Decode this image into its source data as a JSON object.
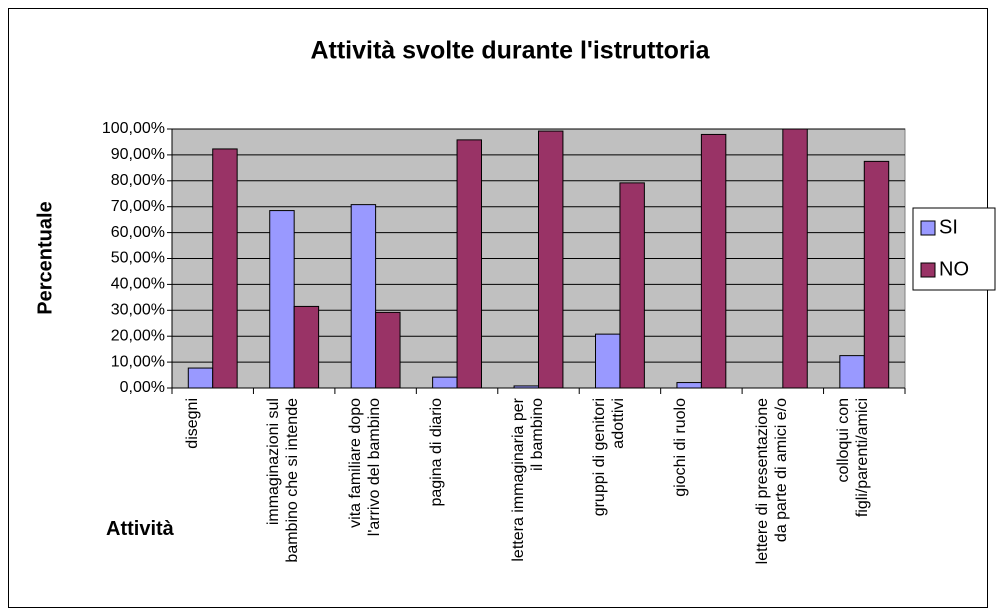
{
  "chart_data": {
    "type": "bar",
    "title": "Attività svolte durante l'istruttoria",
    "y_label": "Percentuale",
    "x_label": "Attività",
    "categories": [
      "disegni",
      "immaginazioni sul bambino che si intende",
      "vita familiare dopo l'arrivo del bambino",
      "pagina di diario",
      "lettera immaginaria per il bambino",
      "gruppi di genitori adottivi",
      "giochi di ruolo",
      "lettere di presentazione da parte di amici e/o",
      "colloqui con figli/parenti/amici"
    ],
    "series": [
      {
        "name": "SI",
        "color": "#9999ff",
        "values": [
          7.7,
          68.5,
          70.8,
          4.2,
          0.8,
          20.8,
          2.1,
          0,
          12.5
        ]
      },
      {
        "name": "NO",
        "color": "#993366",
        "values": [
          92.3,
          31.5,
          29.2,
          95.8,
          99.2,
          79.2,
          97.9,
          100,
          87.5
        ]
      }
    ],
    "ylim": [
      0,
      100
    ],
    "yticks": [
      {
        "value": 0,
        "label": "0,00%"
      },
      {
        "value": 10,
        "label": "10,00%"
      },
      {
        "value": 20,
        "label": "20,00%"
      },
      {
        "value": 30,
        "label": "30,00%"
      },
      {
        "value": 40,
        "label": "40,00%"
      },
      {
        "value": 50,
        "label": "50,00%"
      },
      {
        "value": 60,
        "label": "60,00%"
      },
      {
        "value": 70,
        "label": "70,00%"
      },
      {
        "value": 80,
        "label": "80,00%"
      },
      {
        "value": 90,
        "label": "90,00%"
      },
      {
        "value": 100,
        "label": "100,00%"
      }
    ],
    "legend": "right",
    "plot_background": "#c0c0c0"
  }
}
